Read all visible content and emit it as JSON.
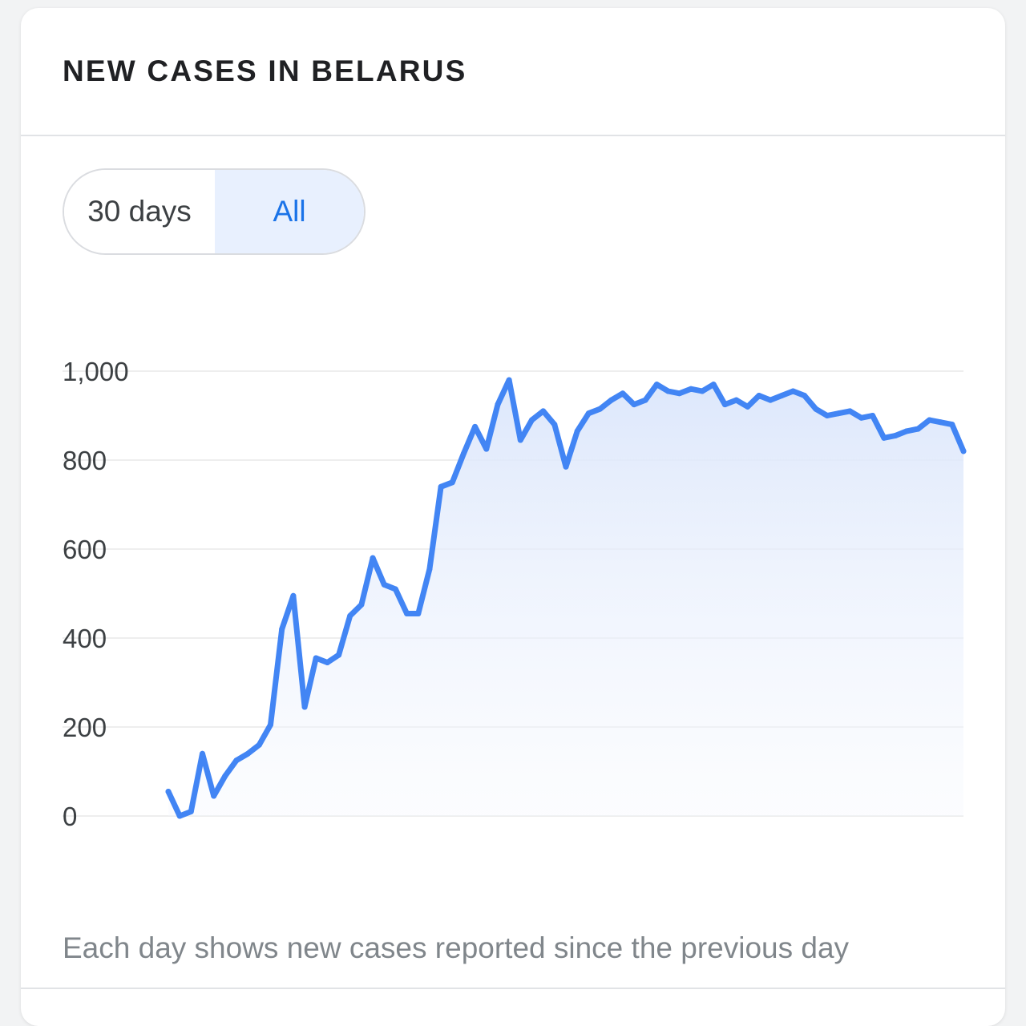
{
  "card": {
    "title": "NEW CASES IN BELARUS",
    "footnote": "Each day shows new cases reported since the previous day"
  },
  "range_toggle": {
    "options": [
      "30 days",
      "All"
    ],
    "selected": "All"
  },
  "colors": {
    "line": "#4285f4",
    "area_fill": "#e8f0fe",
    "grid": "#eeeeee",
    "selected_option_bg": "#e8f0fe",
    "selected_option_text": "#1a73e8"
  },
  "chart_data": {
    "type": "area",
    "title": "",
    "xlabel": "",
    "ylabel": "",
    "ylim": [
      0,
      1000
    ],
    "y_ticks": [
      "0",
      "200",
      "400",
      "600",
      "800",
      "1,000"
    ],
    "y_tick_values": [
      0,
      200,
      400,
      600,
      800,
      1000
    ],
    "grid": true,
    "x_ticks_shown": false,
    "series": [
      {
        "values": [
          55,
          0,
          10,
          140,
          45,
          90,
          125,
          140,
          160,
          205,
          420,
          495,
          245,
          355,
          345,
          362,
          450,
          475,
          580,
          520,
          510,
          455,
          455,
          555,
          740,
          750,
          815,
          875,
          825,
          925,
          980,
          845,
          890,
          910,
          880,
          785,
          865,
          905,
          915,
          935,
          950,
          925,
          935,
          970,
          955,
          950,
          960,
          955,
          970,
          925,
          935,
          920,
          945,
          935,
          945,
          955,
          945,
          915,
          900,
          905,
          910,
          895,
          900,
          850,
          855,
          865,
          870,
          890,
          885,
          880,
          820
        ]
      }
    ]
  }
}
